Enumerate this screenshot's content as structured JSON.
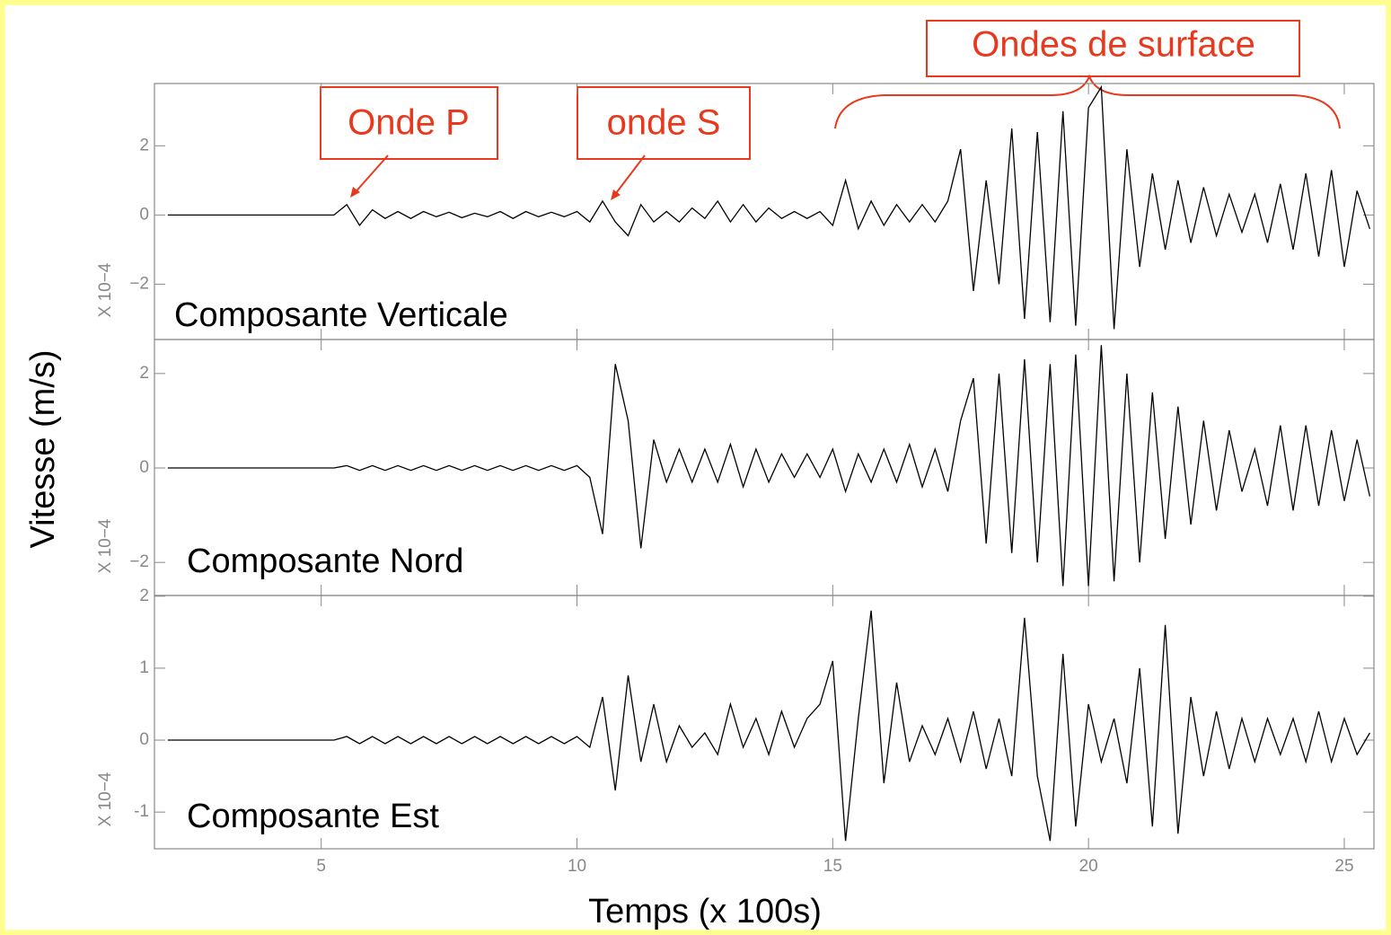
{
  "chart_data": [
    {
      "type": "line",
      "title": "Composante Verticale",
      "unit_label": "X 10−4",
      "annotations": [
        "Onde P",
        "onde S",
        "Ondes de surface"
      ],
      "xlim": [
        1.74,
        25.58
      ],
      "xticks": [
        5,
        10,
        15,
        20,
        25
      ],
      "ylim": [
        -3.6,
        3.8
      ],
      "yticks": [
        {
          "value": -2,
          "label": "−2"
        },
        0,
        2
      ],
      "color": "#000000",
      "x": [
        2,
        2.25,
        2.5,
        2.75,
        3,
        3.25,
        3.5,
        3.75,
        4,
        4.25,
        4.5,
        4.75,
        5,
        5.25,
        5.5,
        5.75,
        6,
        6.25,
        6.5,
        6.75,
        7,
        7.25,
        7.5,
        7.75,
        8,
        8.25,
        8.5,
        8.75,
        9,
        9.25,
        9.5,
        9.75,
        10,
        10.25,
        10.5,
        10.75,
        11,
        11.25,
        11.5,
        11.75,
        12,
        12.25,
        12.5,
        12.75,
        13,
        13.25,
        13.5,
        13.75,
        14,
        14.25,
        14.5,
        14.75,
        15,
        15.25,
        15.5,
        15.75,
        16,
        16.25,
        16.5,
        16.75,
        17,
        17.25,
        17.5,
        17.75,
        18,
        18.25,
        18.5,
        18.75,
        19,
        19.25,
        19.5,
        19.75,
        20,
        20.25,
        20.5,
        20.75,
        21,
        21.25,
        21.5,
        21.75,
        22,
        22.25,
        22.5,
        22.75,
        23,
        23.25,
        23.5,
        23.75,
        24,
        24.25,
        24.5,
        24.75,
        25,
        25.25,
        25.5
      ],
      "values": [
        0,
        0,
        0,
        0,
        0,
        0,
        0,
        0,
        0,
        0,
        0,
        0,
        0,
        0,
        0.3,
        -0.3,
        0.15,
        -0.1,
        0.1,
        -0.1,
        0.1,
        -0.05,
        0.08,
        -0.08,
        0.05,
        -0.05,
        0.1,
        -0.1,
        0.1,
        -0.05,
        0.08,
        -0.05,
        0.1,
        -0.2,
        0.4,
        -0.2,
        -0.6,
        0.3,
        -0.2,
        0.1,
        -0.2,
        0.2,
        -0.1,
        0.4,
        -0.2,
        0.3,
        -0.2,
        0.2,
        -0.1,
        0.1,
        -0.1,
        0.1,
        -0.3,
        1.0,
        -0.4,
        0.4,
        -0.3,
        0.3,
        -0.2,
        0.3,
        -0.2,
        0.4,
        1.9,
        -2.2,
        1.0,
        -2.0,
        2.5,
        -3.0,
        2.4,
        -3.1,
        3.0,
        -3.2,
        3.1,
        3.7,
        -3.3,
        1.9,
        -1.5,
        1.2,
        -1.0,
        1.0,
        -0.8,
        0.8,
        -0.6,
        0.6,
        -0.5,
        0.6,
        -0.8,
        0.9,
        -1.0,
        1.2,
        -1.2,
        1.3,
        -1.5,
        0.7,
        -0.4
      ]
    },
    {
      "type": "line",
      "title": "Composante Nord",
      "unit_label": "X 10−4",
      "ylabel": "Vitesse (m/s)",
      "xlim": [
        1.74,
        25.58
      ],
      "xticks": [
        5,
        10,
        15,
        20,
        25
      ],
      "ylim": [
        -2.7,
        2.72
      ],
      "yticks": [
        {
          "value": -2,
          "label": "−2"
        },
        0,
        2
      ],
      "color": "#000000",
      "x": [
        2,
        2.25,
        2.5,
        2.75,
        3,
        3.25,
        3.5,
        3.75,
        4,
        4.25,
        4.5,
        4.75,
        5,
        5.25,
        5.5,
        5.75,
        6,
        6.25,
        6.5,
        6.75,
        7,
        7.25,
        7.5,
        7.75,
        8,
        8.25,
        8.5,
        8.75,
        9,
        9.25,
        9.5,
        9.75,
        10,
        10.25,
        10.5,
        10.75,
        11,
        11.25,
        11.5,
        11.75,
        12,
        12.25,
        12.5,
        12.75,
        13,
        13.25,
        13.5,
        13.75,
        14,
        14.25,
        14.5,
        14.75,
        15,
        15.25,
        15.5,
        15.75,
        16,
        16.25,
        16.5,
        16.75,
        17,
        17.25,
        17.5,
        17.75,
        18,
        18.25,
        18.5,
        18.75,
        19,
        19.25,
        19.5,
        19.75,
        20,
        20.25,
        20.5,
        20.75,
        21,
        21.25,
        21.5,
        21.75,
        22,
        22.25,
        22.5,
        22.75,
        23,
        23.25,
        23.5,
        23.75,
        24,
        24.25,
        24.5,
        24.75,
        25,
        25.25,
        25.5
      ],
      "values": [
        0,
        0,
        0,
        0,
        0,
        0,
        0,
        0,
        0,
        0,
        0,
        0,
        0,
        0,
        0.05,
        -0.05,
        0.05,
        -0.05,
        0.05,
        -0.05,
        0.05,
        -0.05,
        0.05,
        -0.05,
        0.05,
        -0.05,
        0.05,
        -0.05,
        0.05,
        -0.05,
        0.05,
        -0.05,
        0.05,
        -0.2,
        -1.4,
        2.2,
        1.0,
        -1.7,
        0.6,
        -0.3,
        0.4,
        -0.3,
        0.4,
        -0.3,
        0.5,
        -0.4,
        0.4,
        -0.3,
        0.3,
        -0.2,
        0.3,
        -0.2,
        0.4,
        -0.5,
        0.3,
        -0.3,
        0.4,
        -0.3,
        0.5,
        -0.4,
        0.4,
        -0.5,
        1.0,
        1.9,
        -1.6,
        2.0,
        -1.8,
        2.3,
        -2.0,
        2.2,
        -2.5,
        2.4,
        -2.5,
        2.6,
        -2.4,
        2.0,
        -2.0,
        1.6,
        -1.5,
        1.3,
        -1.2,
        1.0,
        -0.9,
        0.8,
        -0.5,
        0.4,
        -0.8,
        0.9,
        -0.9,
        0.9,
        -0.8,
        0.8,
        -0.7,
        0.6,
        -0.6
      ]
    },
    {
      "type": "line",
      "title": "Composante Est",
      "unit_label": "X 10−4",
      "xlabel": "Temps (x 100s)",
      "xlim": [
        1.74,
        25.58
      ],
      "xticks": [
        5,
        10,
        15,
        20,
        25
      ],
      "ylim": [
        -1.51,
        2.01
      ],
      "yticks": [
        -1,
        0,
        1,
        2
      ],
      "color": "#000000",
      "x": [
        2,
        2.25,
        2.5,
        2.75,
        3,
        3.25,
        3.5,
        3.75,
        4,
        4.25,
        4.5,
        4.75,
        5,
        5.25,
        5.5,
        5.75,
        6,
        6.25,
        6.5,
        6.75,
        7,
        7.25,
        7.5,
        7.75,
        8,
        8.25,
        8.5,
        8.75,
        9,
        9.25,
        9.5,
        9.75,
        10,
        10.25,
        10.5,
        10.75,
        11,
        11.25,
        11.5,
        11.75,
        12,
        12.25,
        12.5,
        12.75,
        13,
        13.25,
        13.5,
        13.75,
        14,
        14.25,
        14.5,
        14.75,
        15,
        15.25,
        15.5,
        15.75,
        16,
        16.25,
        16.5,
        16.75,
        17,
        17.25,
        17.5,
        17.75,
        18,
        18.25,
        18.5,
        18.75,
        19,
        19.25,
        19.5,
        19.75,
        20,
        20.25,
        20.5,
        20.75,
        21,
        21.25,
        21.5,
        21.75,
        22,
        22.25,
        22.5,
        22.75,
        23,
        23.25,
        23.5,
        23.75,
        24,
        24.25,
        24.5,
        24.75,
        25,
        25.25,
        25.5
      ],
      "values": [
        0,
        0,
        0,
        0,
        0,
        0,
        0,
        0,
        0,
        0,
        0,
        0,
        0,
        0,
        0.05,
        -0.05,
        0.05,
        -0.05,
        0.05,
        -0.05,
        0.05,
        -0.05,
        0.05,
        -0.05,
        0.05,
        -0.05,
        0.05,
        -0.05,
        0.05,
        -0.05,
        0.05,
        -0.05,
        0.05,
        -0.1,
        0.6,
        -0.7,
        0.9,
        -0.3,
        0.5,
        -0.3,
        0.2,
        -0.1,
        0.1,
        -0.2,
        0.5,
        -0.1,
        0.3,
        -0.2,
        0.4,
        -0.1,
        0.3,
        0.5,
        1.1,
        -1.4,
        0.3,
        1.8,
        -0.6,
        0.8,
        -0.3,
        0.2,
        -0.2,
        0.3,
        -0.3,
        0.4,
        -0.4,
        0.3,
        -0.5,
        1.7,
        -0.5,
        -1.4,
        1.2,
        -1.2,
        0.5,
        -0.3,
        0.3,
        -0.6,
        1.0,
        -1.2,
        1.6,
        -1.3,
        0.6,
        -0.5,
        0.4,
        -0.4,
        0.3,
        -0.3,
        0.3,
        -0.2,
        0.3,
        -0.3,
        0.4,
        -0.3,
        0.3,
        -0.2,
        0.1
      ]
    }
  ]
}
